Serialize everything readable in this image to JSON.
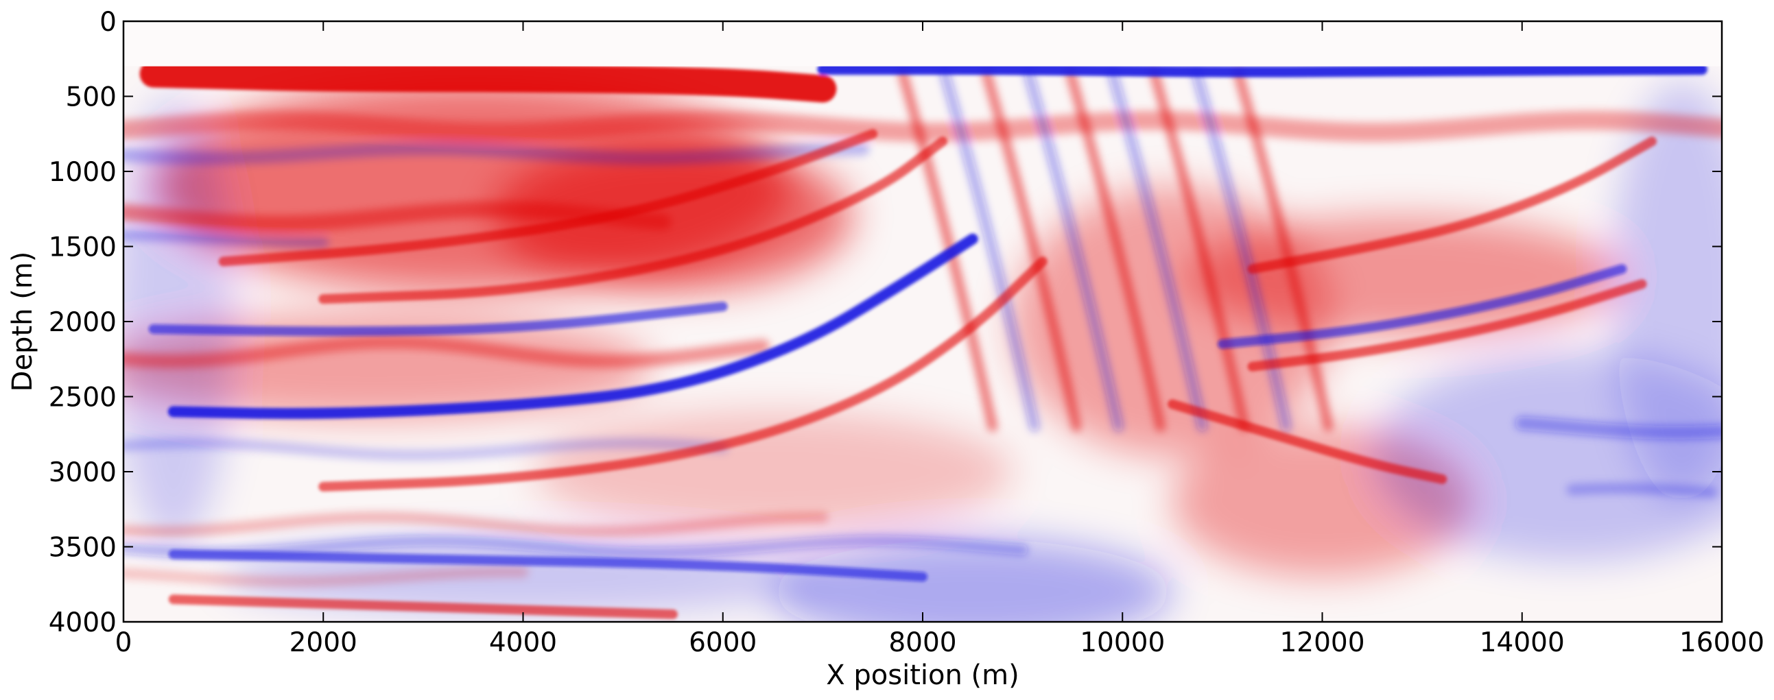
{
  "chart_data": {
    "type": "heatmap",
    "title": "",
    "xlabel": "X position (m)",
    "ylabel": "Depth (m)",
    "xlim": [
      0,
      16000
    ],
    "ylim": [
      4000,
      0
    ],
    "x_ticks": [
      0,
      2000,
      4000,
      6000,
      8000,
      10000,
      12000,
      14000,
      16000
    ],
    "y_ticks": [
      0,
      500,
      1000,
      1500,
      2000,
      2500,
      3000,
      3500,
      4000
    ],
    "x_tick_labels": [
      "0",
      "2000",
      "4000",
      "6000",
      "8000",
      "10000",
      "12000",
      "14000",
      "16000"
    ],
    "y_tick_labels": [
      "0",
      "500",
      "1000",
      "1500",
      "2000",
      "2500",
      "3000",
      "3500",
      "4000"
    ],
    "colormap": "seismic (blue = negative, white = zero, red = positive)",
    "water_layer_bottom_depth": 300,
    "reflectors": [
      {
        "name": "shallow-red-band",
        "polarity": "positive",
        "points": [
          [
            300,
            350
          ],
          [
            2000,
            380
          ],
          [
            4000,
            380
          ],
          [
            6000,
            400
          ],
          [
            7000,
            450
          ]
        ]
      },
      {
        "name": "upper-red-wedge",
        "polarity": "positive",
        "points": [
          [
            1000,
            1600
          ],
          [
            3000,
            1500
          ],
          [
            5000,
            1300
          ],
          [
            6500,
            1000
          ],
          [
            7500,
            750
          ]
        ]
      },
      {
        "name": "upper-red-wedge-base",
        "polarity": "positive",
        "points": [
          [
            2000,
            1850
          ],
          [
            4000,
            1800
          ],
          [
            6000,
            1550
          ],
          [
            7500,
            1150
          ],
          [
            8200,
            800
          ]
        ]
      },
      {
        "name": "main-blue-reflector",
        "polarity": "negative",
        "points": [
          [
            500,
            2600
          ],
          [
            2000,
            2620
          ],
          [
            4000,
            2560
          ],
          [
            5500,
            2450
          ],
          [
            6800,
            2150
          ],
          [
            7800,
            1750
          ],
          [
            8500,
            1450
          ]
        ]
      },
      {
        "name": "left-blue-reflector",
        "polarity": "negative",
        "points": [
          [
            300,
            2050
          ],
          [
            2000,
            2070
          ],
          [
            4000,
            2050
          ],
          [
            6000,
            1900
          ]
        ]
      },
      {
        "name": "deep-red-arc",
        "polarity": "positive",
        "points": [
          [
            2000,
            3100
          ],
          [
            4000,
            3050
          ],
          [
            6000,
            2850
          ],
          [
            7500,
            2500
          ],
          [
            8500,
            2050
          ],
          [
            9200,
            1600
          ]
        ]
      },
      {
        "name": "right-red-band",
        "polarity": "positive",
        "points": [
          [
            11300,
            1650
          ],
          [
            12500,
            1500
          ],
          [
            13500,
            1350
          ],
          [
            14500,
            1100
          ],
          [
            15300,
            800
          ]
        ]
      },
      {
        "name": "right-blue-reflector",
        "polarity": "negative",
        "points": [
          [
            11000,
            2150
          ],
          [
            12500,
            2050
          ],
          [
            14000,
            1850
          ],
          [
            15000,
            1650
          ]
        ]
      },
      {
        "name": "right-red-lower",
        "polarity": "positive",
        "points": [
          [
            11300,
            2300
          ],
          [
            12500,
            2200
          ],
          [
            14000,
            2000
          ],
          [
            15200,
            1750
          ]
        ]
      },
      {
        "name": "top-blue-right",
        "polarity": "negative",
        "points": [
          [
            7000,
            320
          ],
          [
            9000,
            320
          ],
          [
            11000,
            340
          ],
          [
            13000,
            330
          ],
          [
            15800,
            320
          ]
        ]
      },
      {
        "name": "deep-blue-left",
        "polarity": "negative",
        "points": [
          [
            500,
            3550
          ],
          [
            3000,
            3580
          ],
          [
            6000,
            3620
          ],
          [
            8000,
            3700
          ]
        ]
      },
      {
        "name": "deep-red-left",
        "polarity": "positive",
        "points": [
          [
            500,
            3850
          ],
          [
            3000,
            3900
          ],
          [
            5500,
            3950
          ]
        ]
      },
      {
        "name": "mid-red-right",
        "polarity": "positive",
        "points": [
          [
            10500,
            2550
          ],
          [
            11500,
            2750
          ],
          [
            12500,
            2950
          ],
          [
            13200,
            3050
          ]
        ]
      }
    ]
  }
}
